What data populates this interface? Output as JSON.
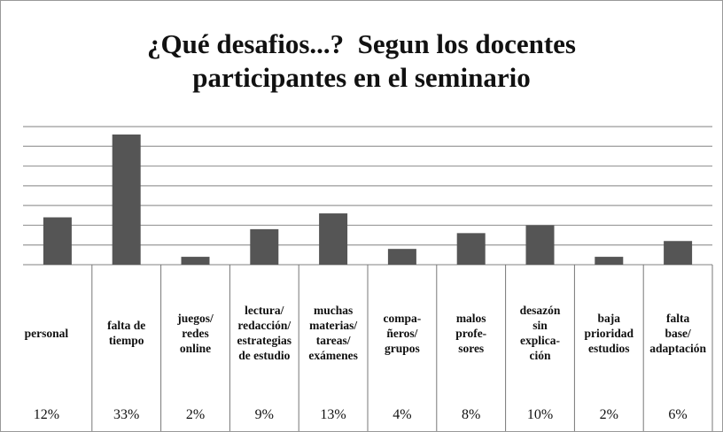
{
  "chart_data": {
    "type": "bar",
    "title": "¿Qué desafios...?  Segun los docentes\nparticipantes en el seminario",
    "categories": [
      "personal",
      "falta de\ntiempo",
      "juegos/\nredes\nonline",
      "lectura/\nredacción/\nestrategias\nde estudio",
      "muchas\nmaterias/\ntareas/\nexámenes",
      "compa-\nñeros/\ngrupos",
      "malos\nprofe-\nsores",
      "desazón\nsin\nexplica-\nción",
      "baja\nprioridad\nestudios",
      "falta\nbase/\nadaptación"
    ],
    "values": [
      12,
      33,
      2,
      9,
      13,
      4,
      8,
      10,
      2,
      6
    ],
    "value_labels": [
      "12%",
      "33%",
      "2%",
      "9%",
      "13%",
      "4%",
      "8%",
      "10%",
      "2%",
      "6%"
    ],
    "color": "#555555",
    "ylim": [
      0,
      35
    ],
    "yticks": [
      0,
      5,
      10,
      15,
      20,
      25,
      30,
      35
    ],
    "grid": true
  }
}
